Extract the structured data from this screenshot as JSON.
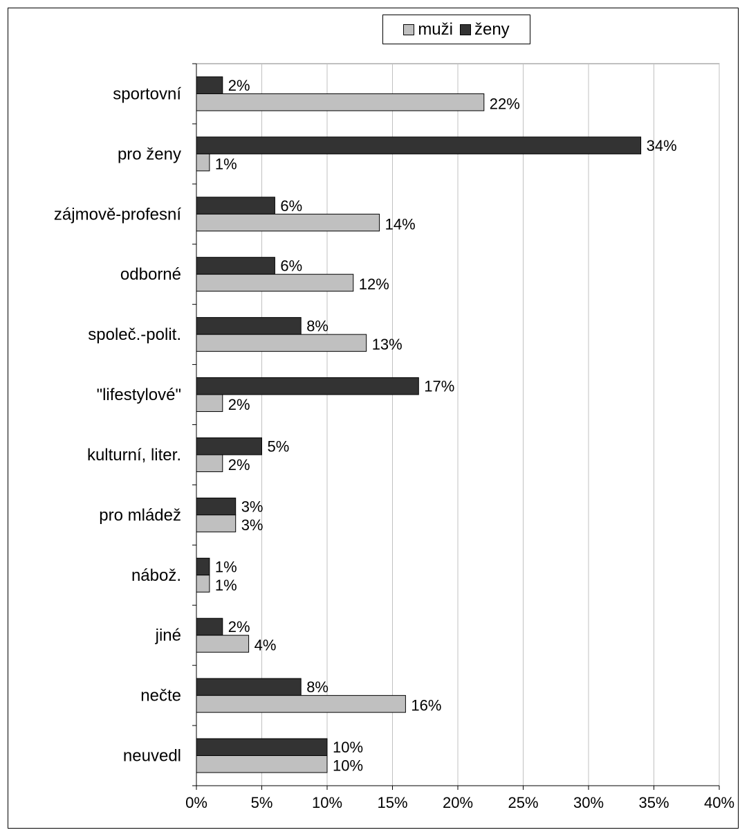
{
  "chart_data": {
    "type": "bar",
    "orientation": "horizontal",
    "categories": [
      "sportovní",
      "pro ženy",
      "zájmově-profesní",
      "odborné",
      "společ.-polit.",
      "\"lifestylové\"",
      "kulturní, liter.",
      "pro mládež",
      "nábož.",
      "jiné",
      "nečte",
      "neuvedl"
    ],
    "series": [
      {
        "name": "ženy",
        "values": [
          2,
          34,
          6,
          6,
          8,
          17,
          5,
          3,
          1,
          2,
          8,
          10
        ],
        "labels": [
          "2%",
          "34%",
          "6%",
          "6%",
          "8%",
          "17%",
          "5%",
          "3%",
          "1%",
          "2%",
          "8%",
          "10%"
        ]
      },
      {
        "name": "muži",
        "values": [
          22,
          1,
          14,
          12,
          13,
          2,
          2,
          3,
          1,
          4,
          16,
          10
        ],
        "labels": [
          "22%",
          "1%",
          "14%",
          "12%",
          "13%",
          "2%",
          "2%",
          "3%",
          "1%",
          "4%",
          "16%",
          "10%"
        ]
      }
    ],
    "xlim": [
      0,
      40
    ],
    "x_ticks": [
      "0%",
      "5%",
      "10%",
      "15%",
      "20%",
      "25%",
      "30%",
      "35%",
      "40%"
    ],
    "grid": true,
    "legend": {
      "position": "top",
      "order": [
        "muži",
        "ženy"
      ]
    },
    "colors": {
      "muži": "#c0c0c0",
      "ženy": "#333333",
      "grid": "#c0c0c0",
      "axis": "#808080"
    }
  }
}
